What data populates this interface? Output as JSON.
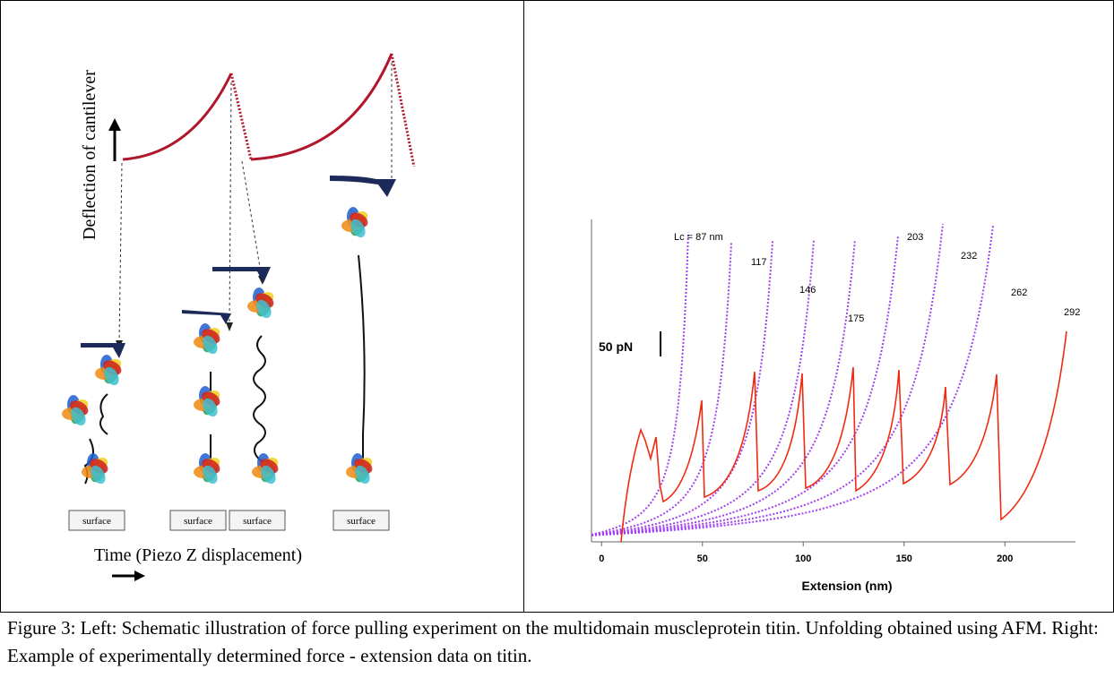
{
  "figure": {
    "left": {
      "y_axis_label": "Deflection of cantilever",
      "x_axis_label": "Time (Piezo Z displacement)",
      "surface_labels": [
        "surface",
        "surface",
        "surface",
        "surface"
      ]
    },
    "right": {
      "contour_labels": [
        "Lc = 87 nm",
        "117",
        "146",
        "175",
        "203",
        "232",
        "262",
        "292"
      ],
      "scale_label": "50 pN",
      "x_axis_label": "Extension (nm)",
      "xlim": [
        -5,
        235
      ],
      "xticks": [
        0,
        50,
        100,
        150,
        200
      ]
    }
  },
  "caption": "Figure 3: Left: Schematic illustration of force pulling experiment on the multidomain muscleprotein titin. Unfolding obtained using AFM. Right: Example of experimentally determined force - extension data on titin."
}
